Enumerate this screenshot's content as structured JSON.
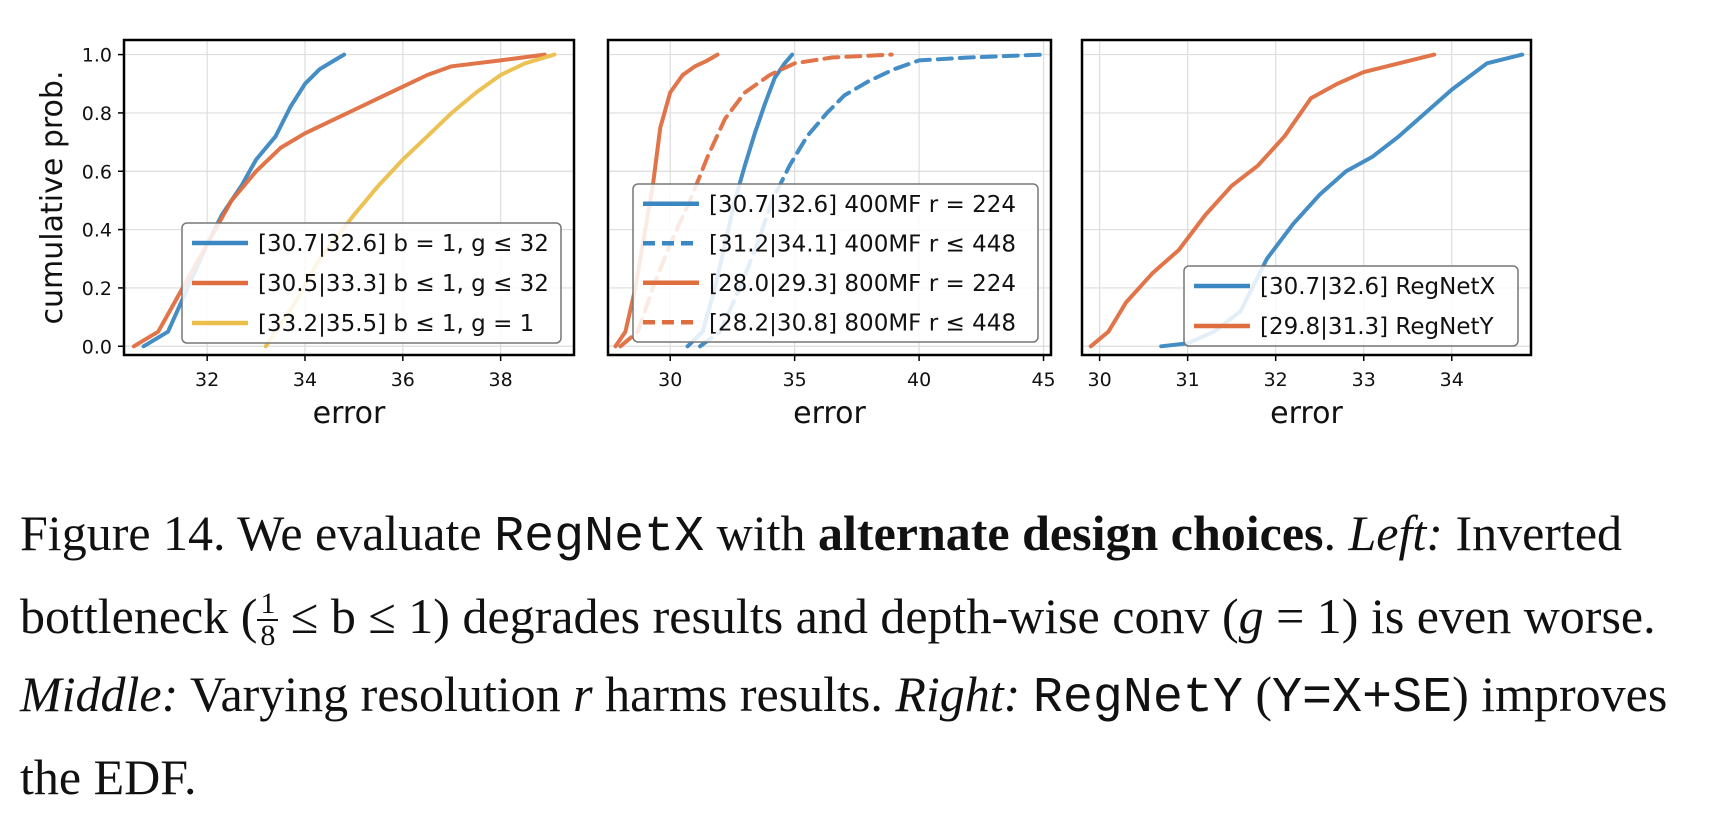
{
  "colors": {
    "blue": "#3a87c2",
    "orange": "#df6d3e",
    "yellow": "#ecbf4b"
  },
  "chart_data": [
    {
      "type": "line",
      "xlabel": "error",
      "ylabel": "cumulative prob.",
      "xlim": [
        30.3,
        39.5
      ],
      "ylim": [
        -0.03,
        1.05
      ],
      "xticks": [
        32,
        34,
        36,
        38
      ],
      "yticks": [
        "0.0",
        "0.2",
        "0.4",
        "0.6",
        "0.8",
        "1.0"
      ],
      "grid": true,
      "legend_position": "lower-right",
      "series": [
        {
          "name": "[30.7|32.6] b = 1, g ≤ 32",
          "color": "blue",
          "dash": false,
          "x": [
            30.7,
            31.2,
            31.6,
            32.0,
            32.3,
            32.7,
            33.0,
            33.4,
            33.7,
            34.0,
            34.3,
            34.6,
            34.8
          ],
          "y": [
            0.0,
            0.05,
            0.2,
            0.35,
            0.45,
            0.55,
            0.64,
            0.72,
            0.82,
            0.9,
            0.95,
            0.98,
            1.0
          ]
        },
        {
          "name": "[30.5|33.3] b ≤ 1, g ≤ 32",
          "color": "orange",
          "dash": false,
          "x": [
            30.5,
            31.0,
            31.5,
            32.0,
            32.5,
            33.0,
            33.5,
            34.0,
            34.5,
            35.0,
            35.5,
            36.0,
            36.5,
            37.0,
            38.0,
            38.9
          ],
          "y": [
            0.0,
            0.05,
            0.2,
            0.35,
            0.5,
            0.6,
            0.68,
            0.73,
            0.77,
            0.81,
            0.85,
            0.89,
            0.93,
            0.96,
            0.98,
            1.0
          ]
        },
        {
          "name": "[33.2|35.5] b ≤ 1, g = 1",
          "color": "yellow",
          "dash": false,
          "x": [
            33.2,
            33.8,
            34.3,
            35.0,
            35.5,
            36.0,
            36.5,
            37.0,
            37.5,
            38.0,
            38.5,
            39.1
          ],
          "y": [
            0.0,
            0.15,
            0.3,
            0.45,
            0.55,
            0.64,
            0.72,
            0.8,
            0.87,
            0.93,
            0.97,
            1.0
          ]
        }
      ]
    },
    {
      "type": "line",
      "xlabel": "error",
      "ylabel": "",
      "xlim": [
        27.5,
        45.3
      ],
      "ylim": [
        -0.03,
        1.05
      ],
      "xticks": [
        30,
        35,
        40,
        45
      ],
      "yticks": [],
      "grid": true,
      "legend_position": "lower-center",
      "series": [
        {
          "name": "[30.7|32.6] 400MF r = 224",
          "color": "blue",
          "dash": false,
          "x": [
            30.7,
            31.3,
            31.8,
            32.2,
            32.6,
            33.0,
            33.4,
            33.8,
            34.2,
            34.6,
            34.9
          ],
          "y": [
            0.0,
            0.05,
            0.2,
            0.35,
            0.5,
            0.62,
            0.73,
            0.83,
            0.92,
            0.97,
            1.0
          ]
        },
        {
          "name": "[31.2|34.1] 400MF r ≤ 448",
          "color": "blue",
          "dash": true,
          "x": [
            31.2,
            32.0,
            32.8,
            33.5,
            34.1,
            34.8,
            35.5,
            36.3,
            37.0,
            38.0,
            39.0,
            40.0,
            42.0,
            45.0
          ],
          "y": [
            0.0,
            0.05,
            0.2,
            0.35,
            0.5,
            0.62,
            0.72,
            0.8,
            0.86,
            0.91,
            0.95,
            0.98,
            0.99,
            1.0
          ]
        },
        {
          "name": "[28.0|29.3] 800MF r = 224",
          "color": "orange",
          "dash": false,
          "x": [
            27.8,
            28.2,
            28.6,
            29.0,
            29.3,
            29.6,
            30.0,
            30.5,
            31.0,
            31.5,
            31.9
          ],
          "y": [
            0.0,
            0.05,
            0.2,
            0.4,
            0.55,
            0.75,
            0.87,
            0.93,
            0.96,
            0.98,
            1.0
          ]
        },
        {
          "name": "[28.2|30.8] 800MF r ≤ 448",
          "color": "orange",
          "dash": true,
          "x": [
            28.0,
            28.7,
            29.3,
            30.0,
            30.8,
            31.5,
            32.2,
            33.0,
            34.0,
            35.0,
            36.5,
            38.9
          ],
          "y": [
            0.0,
            0.05,
            0.2,
            0.35,
            0.5,
            0.65,
            0.78,
            0.87,
            0.93,
            0.97,
            0.99,
            1.0
          ]
        }
      ]
    },
    {
      "type": "line",
      "xlabel": "error",
      "ylabel": "",
      "xlim": [
        29.8,
        34.9
      ],
      "ylim": [
        -0.03,
        1.05
      ],
      "xticks": [
        30,
        31,
        32,
        33,
        34
      ],
      "yticks": [],
      "grid": true,
      "legend_position": "lower-right",
      "series": [
        {
          "name": "[30.7|32.6] RegNetX",
          "color": "blue",
          "dash": false,
          "x": [
            30.7,
            31.0,
            31.3,
            31.6,
            31.9,
            32.2,
            32.5,
            32.8,
            33.1,
            33.4,
            33.7,
            34.0,
            34.4,
            34.8
          ],
          "y": [
            0.0,
            0.01,
            0.05,
            0.12,
            0.3,
            0.42,
            0.52,
            0.6,
            0.65,
            0.72,
            0.8,
            0.88,
            0.97,
            1.0
          ]
        },
        {
          "name": "[29.8|31.3] RegNetY",
          "color": "orange",
          "dash": false,
          "x": [
            29.9,
            30.1,
            30.3,
            30.6,
            30.9,
            31.2,
            31.5,
            31.8,
            32.1,
            32.4,
            32.7,
            33.0,
            33.4,
            33.8
          ],
          "y": [
            0.0,
            0.05,
            0.15,
            0.25,
            0.33,
            0.45,
            0.55,
            0.62,
            0.72,
            0.85,
            0.9,
            0.94,
            0.97,
            1.0
          ]
        }
      ]
    }
  ],
  "caption": {
    "figure_label": "Figure 14.",
    "intro": " We evaluate ",
    "regnetx": "RegNetX",
    "with": " with ",
    "bold": "alternate design choices",
    "period": ".",
    "left_label": "Left:",
    "left_text_1": " Inverted bottleneck (",
    "frac_num": "1",
    "frac_den": "8",
    "left_math": " ≤ b ≤ 1",
    "left_text_2": ") degrades results and depth-wise conv (",
    "left_math_2": "g",
    "left_text_3": " = 1) is even worse. ",
    "middle_label": "Middle:",
    "middle_text": " Varying resolution ",
    "middle_r": "r",
    "middle_text_2": " harms results. ",
    "right_label": "Right:",
    "regnety": "RegNetY",
    "right_text_1": " (",
    "right_mono": "Y=X+SE",
    "right_text_2": ") improves the EDF."
  }
}
